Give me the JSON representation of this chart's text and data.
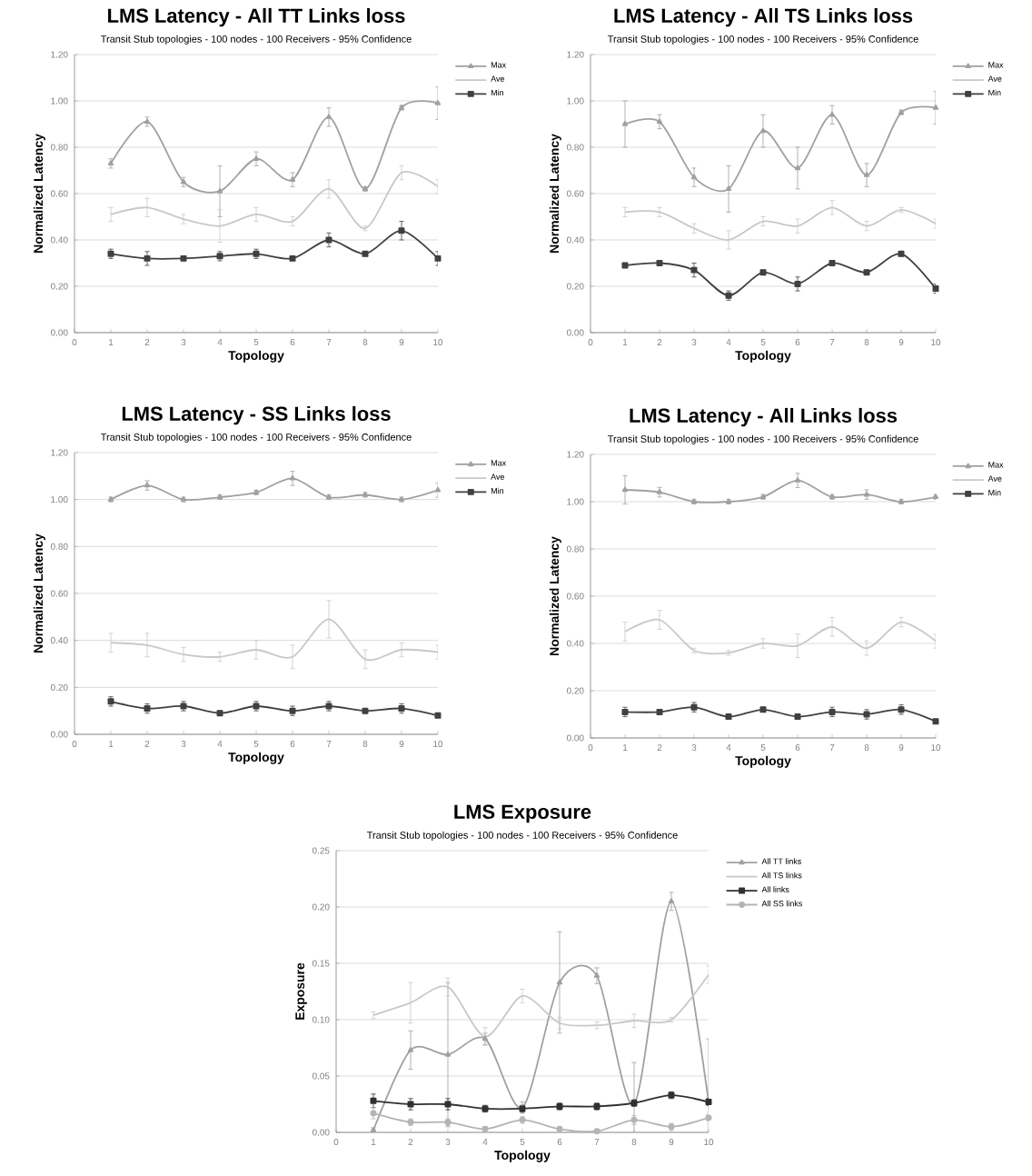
{
  "chart_data": [
    {
      "type": "line",
      "title": "LMS Latency - All TT Links loss",
      "subtitle": "Transit Stub topologies - 100 nodes - 100 Receivers - 95% Confidence",
      "xlabel": "Topology",
      "ylabel": "Normalized Latency",
      "x": [
        1,
        2,
        3,
        4,
        5,
        6,
        7,
        8,
        9,
        10
      ],
      "xlim": [
        0,
        10
      ],
      "xticks": [
        0,
        1,
        2,
        3,
        4,
        5,
        6,
        7,
        8,
        9,
        10
      ],
      "ylim": [
        0,
        1.2
      ],
      "yticks": [
        {
          "value": 0,
          "label": "0.00"
        },
        {
          "value": 0.2,
          "label": "0.20"
        },
        {
          "value": 0.4,
          "label": "0.40"
        },
        {
          "value": 0.6,
          "label": "0.60"
        },
        {
          "value": 0.8,
          "label": "0.80"
        },
        {
          "value": 1.0,
          "label": "1.00"
        },
        {
          "value": 1.2,
          "label": "1.20"
        }
      ],
      "grid": "y",
      "legend": "right",
      "series": [
        {
          "name": "Max",
          "color": "#a0a0a0",
          "marker": "triangle",
          "values": [
            0.73,
            0.91,
            0.65,
            0.61,
            0.75,
            0.66,
            0.93,
            0.62,
            0.97,
            0.99
          ],
          "errors": [
            0.02,
            0.02,
            0.02,
            0.11,
            0.03,
            0.03,
            0.04,
            0.01,
            0.01,
            0.07
          ]
        },
        {
          "name": "Ave",
          "color": "#c8c8c8",
          "marker": "none",
          "values": [
            0.51,
            0.54,
            0.49,
            0.46,
            0.51,
            0.48,
            0.62,
            0.45,
            0.69,
            0.63
          ],
          "errors": [
            0.03,
            0.04,
            0.02,
            0.07,
            0.03,
            0.02,
            0.04,
            0.01,
            0.03,
            0.03
          ]
        },
        {
          "name": "Min",
          "color": "#404040",
          "marker": "square",
          "values": [
            0.34,
            0.32,
            0.32,
            0.33,
            0.34,
            0.32,
            0.4,
            0.34,
            0.44,
            0.32
          ],
          "errors": [
            0.02,
            0.03,
            0.01,
            0.02,
            0.02,
            0.01,
            0.03,
            0.01,
            0.04,
            0.03
          ]
        }
      ]
    },
    {
      "type": "line",
      "title": "LMS Latency - All TS Links loss",
      "subtitle": "Transit Stub topologies - 100 nodes - 100 Receivers - 95% Confidence",
      "xlabel": "Topology",
      "ylabel": "Normalized Latency",
      "x": [
        1,
        2,
        3,
        4,
        5,
        6,
        7,
        8,
        9,
        10
      ],
      "xlim": [
        0,
        10
      ],
      "xticks": [
        0,
        1,
        2,
        3,
        4,
        5,
        6,
        7,
        8,
        9,
        10
      ],
      "ylim": [
        0,
        1.2
      ],
      "yticks": [
        {
          "value": 0,
          "label": "0.00"
        },
        {
          "value": 0.2,
          "label": "0.20"
        },
        {
          "value": 0.4,
          "label": "0.40"
        },
        {
          "value": 0.6,
          "label": "0.60"
        },
        {
          "value": 0.8,
          "label": "0.80"
        },
        {
          "value": 1.0,
          "label": "1.00"
        },
        {
          "value": 1.2,
          "label": "1.20"
        }
      ],
      "grid": "y",
      "legend": "right",
      "series": [
        {
          "name": "Max",
          "color": "#a0a0a0",
          "marker": "triangle",
          "values": [
            0.9,
            0.91,
            0.67,
            0.62,
            0.87,
            0.71,
            0.94,
            0.68,
            0.95,
            0.97
          ],
          "errors": [
            0.1,
            0.03,
            0.04,
            0.1,
            0.07,
            0.09,
            0.04,
            0.05,
            0.01,
            0.07
          ]
        },
        {
          "name": "Ave",
          "color": "#c8c8c8",
          "marker": "none",
          "values": [
            0.52,
            0.52,
            0.45,
            0.4,
            0.48,
            0.46,
            0.54,
            0.46,
            0.53,
            0.47
          ],
          "errors": [
            0.02,
            0.02,
            0.02,
            0.04,
            0.02,
            0.03,
            0.03,
            0.02,
            0.01,
            0.02
          ]
        },
        {
          "name": "Min",
          "color": "#404040",
          "marker": "square",
          "values": [
            0.29,
            0.3,
            0.27,
            0.16,
            0.26,
            0.21,
            0.3,
            0.26,
            0.34,
            0.19
          ],
          "errors": [
            0.01,
            0.01,
            0.03,
            0.02,
            0.01,
            0.03,
            0.01,
            0.01,
            0.01,
            0.02
          ]
        }
      ]
    },
    {
      "type": "line",
      "title": "LMS Latency - SS Links loss",
      "subtitle": "Transit Stub topologies - 100 nodes - 100 Receivers - 95% Confidence",
      "xlabel": "Topology",
      "ylabel": "Normalized Latency",
      "x": [
        1,
        2,
        3,
        4,
        5,
        6,
        7,
        8,
        9,
        10
      ],
      "xlim": [
        0,
        10
      ],
      "xticks": [
        0,
        1,
        2,
        3,
        4,
        5,
        6,
        7,
        8,
        9,
        10
      ],
      "ylim": [
        0,
        1.2
      ],
      "yticks": [
        {
          "value": 0,
          "label": "0.00"
        },
        {
          "value": 0.2,
          "label": "0.20"
        },
        {
          "value": 0.4,
          "label": "0.40"
        },
        {
          "value": 0.6,
          "label": "0.60"
        },
        {
          "value": 0.8,
          "label": "0.80"
        },
        {
          "value": 1.0,
          "label": "1.00"
        },
        {
          "value": 1.2,
          "label": "1.20"
        }
      ],
      "grid": "y",
      "legend": "right",
      "series": [
        {
          "name": "Max",
          "color": "#a0a0a0",
          "marker": "triangle",
          "values": [
            1.0,
            1.06,
            1.0,
            1.01,
            1.03,
            1.09,
            1.01,
            1.02,
            1.0,
            1.04
          ],
          "errors": [
            0.01,
            0.02,
            0.01,
            0.01,
            0.01,
            0.03,
            0.01,
            0.01,
            0.01,
            0.03
          ]
        },
        {
          "name": "Ave",
          "color": "#c8c8c8",
          "marker": "none",
          "values": [
            0.39,
            0.38,
            0.34,
            0.33,
            0.36,
            0.33,
            0.49,
            0.32,
            0.36,
            0.35
          ],
          "errors": [
            0.04,
            0.05,
            0.03,
            0.02,
            0.04,
            0.05,
            0.08,
            0.04,
            0.03,
            0.03
          ]
        },
        {
          "name": "Min",
          "color": "#404040",
          "marker": "square",
          "values": [
            0.14,
            0.11,
            0.12,
            0.09,
            0.12,
            0.1,
            0.12,
            0.1,
            0.11,
            0.08
          ],
          "errors": [
            0.02,
            0.02,
            0.02,
            0.01,
            0.02,
            0.02,
            0.02,
            0.01,
            0.02,
            0.01
          ]
        }
      ]
    },
    {
      "type": "line",
      "title": "LMS Latency - All Links loss",
      "subtitle": "Transit Stub topologies - 100 nodes - 100 Receivers - 95% Confidence",
      "xlabel": "Topology",
      "ylabel": "Normalized Latency",
      "x": [
        1,
        2,
        3,
        4,
        5,
        6,
        7,
        8,
        9,
        10
      ],
      "xlim": [
        0,
        10
      ],
      "xticks": [
        0,
        1,
        2,
        3,
        4,
        5,
        6,
        7,
        8,
        9,
        10
      ],
      "ylim": [
        0,
        1.2
      ],
      "yticks": [
        {
          "value": 0,
          "label": "0.00"
        },
        {
          "value": 0.2,
          "label": "0.20"
        },
        {
          "value": 0.4,
          "label": "0.40"
        },
        {
          "value": 0.6,
          "label": "0.60"
        },
        {
          "value": 0.8,
          "label": "0.80"
        },
        {
          "value": 1.0,
          "label": "1.00"
        },
        {
          "value": 1.2,
          "label": "1.20"
        }
      ],
      "grid": "y",
      "legend": "right",
      "series": [
        {
          "name": "Max",
          "color": "#a0a0a0",
          "marker": "triangle",
          "values": [
            1.05,
            1.04,
            1.0,
            1.0,
            1.02,
            1.09,
            1.02,
            1.03,
            1.0,
            1.02
          ],
          "errors": [
            0.06,
            0.02,
            0.01,
            0.01,
            0.01,
            0.03,
            0.01,
            0.02,
            0.01,
            0.01
          ]
        },
        {
          "name": "Ave",
          "color": "#c8c8c8",
          "marker": "none",
          "values": [
            0.45,
            0.5,
            0.37,
            0.36,
            0.4,
            0.39,
            0.47,
            0.38,
            0.49,
            0.41
          ],
          "errors": [
            0.04,
            0.04,
            0.01,
            0.01,
            0.02,
            0.05,
            0.04,
            0.03,
            0.02,
            0.03
          ]
        },
        {
          "name": "Min",
          "color": "#404040",
          "marker": "square",
          "values": [
            0.11,
            0.11,
            0.13,
            0.09,
            0.12,
            0.09,
            0.11,
            0.1,
            0.12,
            0.07
          ],
          "errors": [
            0.02,
            0.01,
            0.02,
            0.01,
            0.01,
            0.01,
            0.02,
            0.02,
            0.02,
            0.01
          ]
        }
      ]
    },
    {
      "type": "line",
      "title": "LMS Exposure",
      "subtitle": "Transit Stub topologies - 100 nodes - 100 Receivers - 95% Confidence",
      "xlabel": "Topology",
      "ylabel": "Exposure",
      "x": [
        1,
        2,
        3,
        4,
        5,
        6,
        7,
        8,
        9,
        10
      ],
      "xlim": [
        0,
        10
      ],
      "xticks": [
        0,
        1,
        2,
        3,
        4,
        5,
        6,
        7,
        8,
        9,
        10
      ],
      "ylim": [
        0,
        0.25
      ],
      "yticks": [
        {
          "value": 0,
          "label": "0.00"
        },
        {
          "value": 0.05,
          "label": "0.05"
        },
        {
          "value": 0.1,
          "label": "0.10"
        },
        {
          "value": 0.15,
          "label": "0.15"
        },
        {
          "value": 0.2,
          "label": "0.20"
        },
        {
          "value": 0.25,
          "label": "0.25"
        }
      ],
      "grid": "y",
      "legend": "right",
      "series": [
        {
          "name": "All TT links",
          "color": "#a0a0a0",
          "marker": "triangle",
          "values": [
            0.002,
            0.073,
            0.069,
            0.083,
            0.022,
            0.133,
            0.139,
            0.025,
            0.205,
            0.027
          ],
          "errors": [
            0.002,
            0.017,
            0.064,
            0.005,
            0.005,
            0.045,
            0.007,
            0.037,
            0.008,
            0.056
          ]
        },
        {
          "name": "All TS links",
          "color": "#c8c8c8",
          "marker": "none",
          "values": [
            0.104,
            0.115,
            0.129,
            0.085,
            0.121,
            0.097,
            0.095,
            0.099,
            0.1,
            0.14
          ],
          "errors": [
            0.003,
            0.018,
            0.008,
            0.008,
            0.006,
            0.005,
            0.003,
            0.006,
            0.002,
            0.008
          ]
        },
        {
          "name": "All links",
          "color": "#303030",
          "marker": "square",
          "values": [
            0.028,
            0.025,
            0.025,
            0.021,
            0.021,
            0.023,
            0.023,
            0.026,
            0.033,
            0.027
          ],
          "errors": [
            0.006,
            0.005,
            0.005,
            0.003,
            0.003,
            0.003,
            0.003,
            0.003,
            0.003,
            0.003
          ]
        },
        {
          "name": "All SS links",
          "color": "#b4b4b4",
          "marker": "circle",
          "values": [
            0.017,
            0.009,
            0.009,
            0.003,
            0.011,
            0.003,
            0.001,
            0.011,
            0.005,
            0.013
          ],
          "errors": [
            0.005,
            0.003,
            0.003,
            0.002,
            0.003,
            0.002,
            0.001,
            0.004,
            0.003,
            0.003
          ]
        }
      ]
    }
  ]
}
